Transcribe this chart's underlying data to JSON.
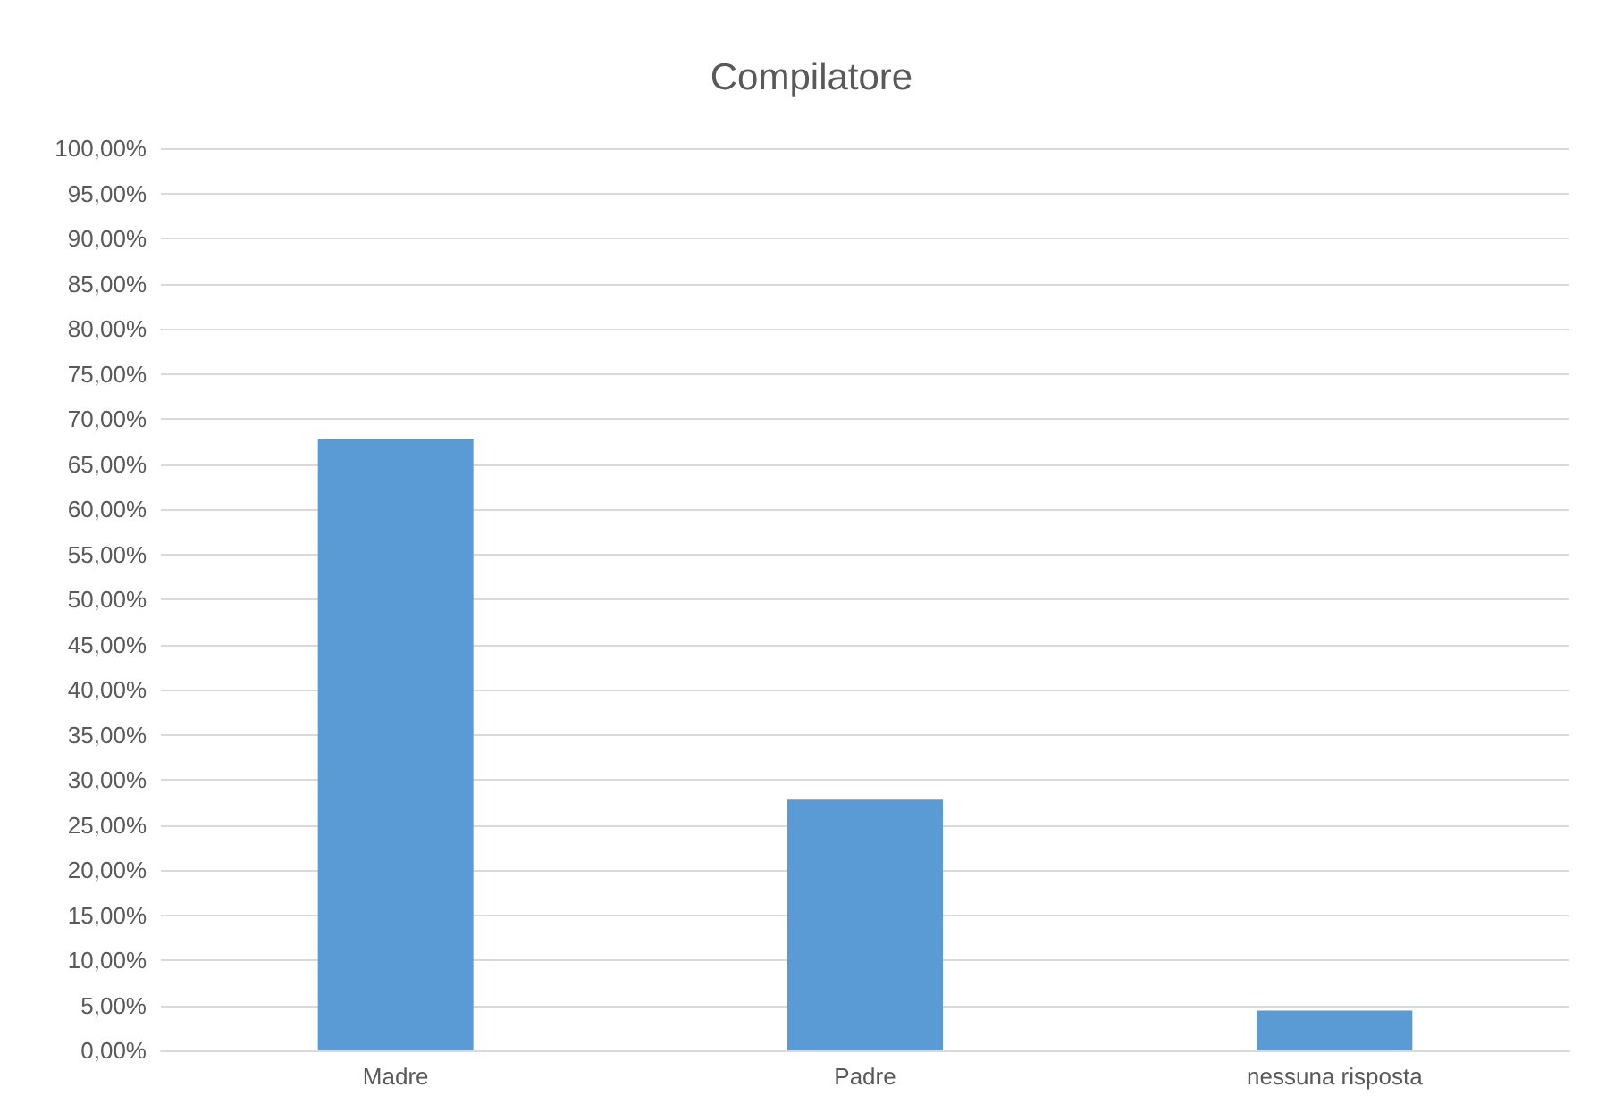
{
  "chart_data": {
    "type": "bar",
    "title": "Compilatore",
    "categories": [
      "Madre",
      "Padre",
      "nessuna risposta"
    ],
    "values": [
      67.8,
      27.8,
      4.4
    ],
    "color": "#5b9bd5",
    "ylim": [
      0,
      100
    ],
    "yticks": [
      {
        "value": 0,
        "label": "0,00%"
      },
      {
        "value": 5,
        "label": "5,00%"
      },
      {
        "value": 10,
        "label": "10,00%"
      },
      {
        "value": 15,
        "label": "15,00%"
      },
      {
        "value": 20,
        "label": "20,00%"
      },
      {
        "value": 25,
        "label": "25,00%"
      },
      {
        "value": 30,
        "label": "30,00%"
      },
      {
        "value": 35,
        "label": "35,00%"
      },
      {
        "value": 40,
        "label": "40,00%"
      },
      {
        "value": 45,
        "label": "45,00%"
      },
      {
        "value": 50,
        "label": "50,00%"
      },
      {
        "value": 55,
        "label": "55,00%"
      },
      {
        "value": 60,
        "label": "60,00%"
      },
      {
        "value": 65,
        "label": "65,00%"
      },
      {
        "value": 70,
        "label": "70,00%"
      },
      {
        "value": 75,
        "label": "75,00%"
      },
      {
        "value": 80,
        "label": "80,00%"
      },
      {
        "value": 85,
        "label": "85,00%"
      },
      {
        "value": 90,
        "label": "90,00%"
      },
      {
        "value": 95,
        "label": "95,00%"
      },
      {
        "value": 100,
        "label": "100,00%"
      }
    ],
    "grid": "y"
  }
}
